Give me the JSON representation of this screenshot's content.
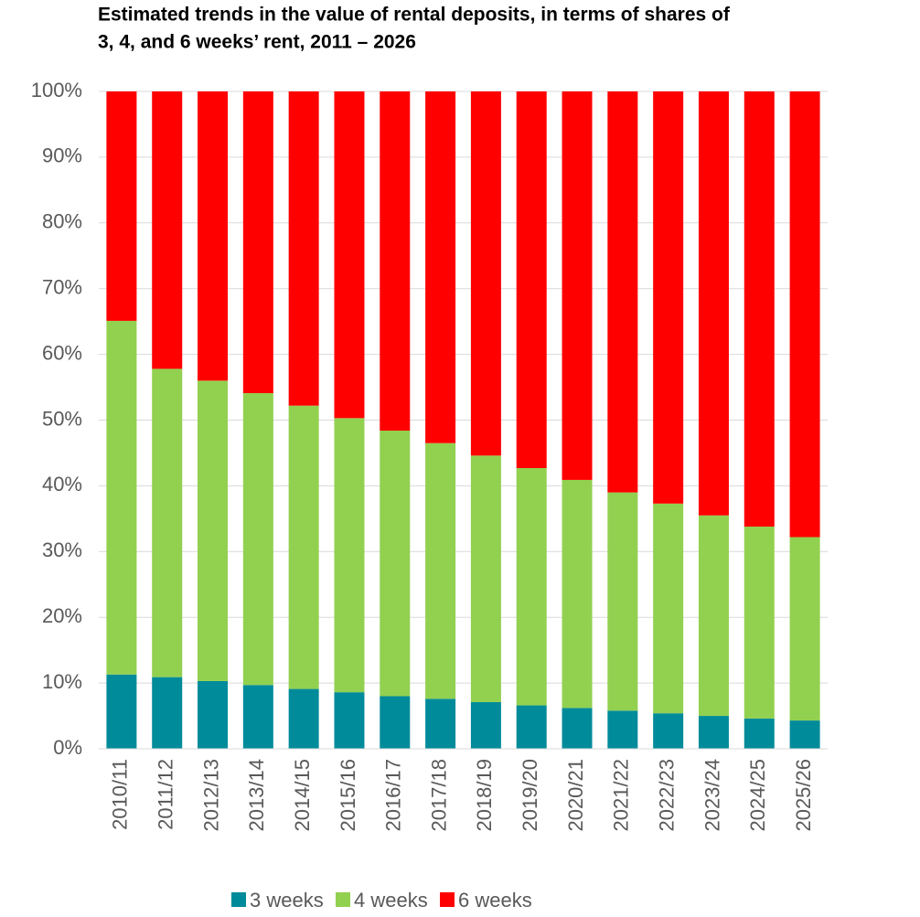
{
  "chart_data": {
    "type": "stacked_bar",
    "title_lines": [
      "Estimated trends in the value of rental deposits, in terms of shares of",
      "3, 4, and 6 weeks’ rent, 2011 – 2026"
    ],
    "categories": [
      "2010/11",
      "2011/12",
      "2012/13",
      "2013/14",
      "2014/15",
      "2015/16",
      "2016/17",
      "2017/18",
      "2018/19",
      "2019/20",
      "2020/21",
      "2021/22",
      "2022/23",
      "2023/24",
      "2024/25",
      "2025/26"
    ],
    "series": [
      {
        "name": "3 weeks",
        "color": "#008b9a",
        "values": [
          11.3,
          10.9,
          10.3,
          9.7,
          9.1,
          8.6,
          8.0,
          7.6,
          7.1,
          6.6,
          6.2,
          5.8,
          5.4,
          5.0,
          4.6,
          4.3
        ]
      },
      {
        "name": "4 weeks",
        "color": "#92d050",
        "values": [
          53.8,
          46.9,
          45.7,
          44.4,
          43.1,
          41.7,
          40.4,
          38.9,
          37.5,
          36.1,
          34.7,
          33.2,
          31.9,
          30.5,
          29.2,
          27.9
        ]
      },
      {
        "name": "6 weeks",
        "color": "#ff0000",
        "values": [
          34.9,
          42.2,
          44.0,
          45.9,
          47.8,
          49.7,
          51.6,
          53.5,
          55.4,
          57.3,
          59.1,
          61.0,
          62.7,
          64.5,
          66.2,
          67.8
        ]
      }
    ],
    "ylim": [
      0,
      100
    ],
    "yticks": [
      {
        "value": 0,
        "label": "0%"
      },
      {
        "value": 10,
        "label": "10%"
      },
      {
        "value": 20,
        "label": "20%"
      },
      {
        "value": 30,
        "label": "30%"
      },
      {
        "value": 40,
        "label": "40%"
      },
      {
        "value": 50,
        "label": "50%"
      },
      {
        "value": 60,
        "label": "60%"
      },
      {
        "value": 70,
        "label": "70%"
      },
      {
        "value": 80,
        "label": "80%"
      },
      {
        "value": 90,
        "label": "90%"
      },
      {
        "value": 100,
        "label": "100%"
      }
    ],
    "grid": true,
    "legend": "bottom"
  }
}
